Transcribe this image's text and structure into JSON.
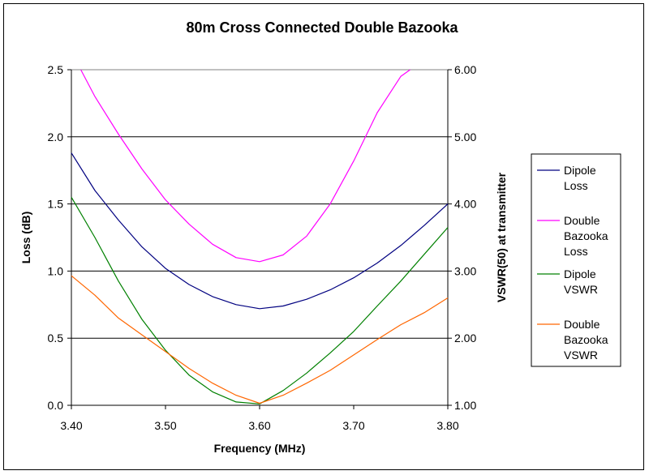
{
  "chart_data": {
    "type": "line",
    "title": "80m Cross Connected Double Bazooka",
    "xlabel": "Frequency (MHz)",
    "ylabel": "Loss (dB)",
    "y2label": "VSWR(50) at transmitter",
    "xlim": [
      3.4,
      3.8
    ],
    "ylim": [
      0,
      2.5
    ],
    "y2lim": [
      1,
      6
    ],
    "x_ticks": [
      "3.40",
      "3.50",
      "3.60",
      "3.70",
      "3.80"
    ],
    "y_ticks": [
      "0.0",
      "0.5",
      "1.0",
      "1.5",
      "2.0",
      "2.5"
    ],
    "y2_ticks": [
      "1.00",
      "2.00",
      "3.00",
      "4.00",
      "5.00",
      "6.00"
    ],
    "grid": "horizontal",
    "legend": "right",
    "series": [
      {
        "name": "Dipole Loss",
        "legend_lines": [
          "Dipole",
          "Loss"
        ],
        "axis": "left",
        "color": "#000080",
        "x": [
          3.4,
          3.425,
          3.45,
          3.475,
          3.5,
          3.525,
          3.55,
          3.575,
          3.6,
          3.625,
          3.65,
          3.675,
          3.7,
          3.725,
          3.75,
          3.775,
          3.8
        ],
        "y": [
          1.88,
          1.6,
          1.38,
          1.18,
          1.02,
          0.9,
          0.81,
          0.75,
          0.72,
          0.74,
          0.79,
          0.86,
          0.95,
          1.06,
          1.19,
          1.34,
          1.5
        ]
      },
      {
        "name": "Double Bazooka Loss",
        "legend_lines": [
          "Double",
          "Bazooka",
          "Loss"
        ],
        "axis": "left",
        "color": "#ff00ff",
        "x": [
          3.41,
          3.425,
          3.45,
          3.475,
          3.5,
          3.525,
          3.55,
          3.575,
          3.6,
          3.625,
          3.65,
          3.675,
          3.7,
          3.725,
          3.75,
          3.76
        ],
        "y": [
          2.5,
          2.3,
          2.02,
          1.76,
          1.53,
          1.35,
          1.2,
          1.1,
          1.07,
          1.12,
          1.26,
          1.5,
          1.82,
          2.18,
          2.45,
          2.5
        ]
      },
      {
        "name": "Dipole VSWR",
        "legend_lines": [
          "Dipole",
          "VSWR"
        ],
        "axis": "right",
        "color": "#008000",
        "x": [
          3.4,
          3.425,
          3.45,
          3.475,
          3.5,
          3.525,
          3.55,
          3.575,
          3.6,
          3.625,
          3.65,
          3.675,
          3.7,
          3.725,
          3.75,
          3.775,
          3.8
        ],
        "y": [
          4.1,
          3.5,
          2.85,
          2.28,
          1.82,
          1.45,
          1.2,
          1.05,
          1.02,
          1.22,
          1.48,
          1.78,
          2.1,
          2.48,
          2.85,
          3.25,
          3.65
        ]
      },
      {
        "name": "Double Bazooka VSWR",
        "legend_lines": [
          "Double",
          "Bazooka",
          "VSWR"
        ],
        "axis": "right",
        "color": "#ff6600",
        "x": [
          3.4,
          3.425,
          3.45,
          3.475,
          3.5,
          3.525,
          3.55,
          3.575,
          3.6,
          3.625,
          3.65,
          3.675,
          3.7,
          3.725,
          3.75,
          3.775,
          3.8
        ],
        "y": [
          2.93,
          2.64,
          2.3,
          2.05,
          1.8,
          1.55,
          1.33,
          1.15,
          1.03,
          1.15,
          1.33,
          1.52,
          1.75,
          1.98,
          2.2,
          2.38,
          2.6
        ]
      }
    ]
  }
}
